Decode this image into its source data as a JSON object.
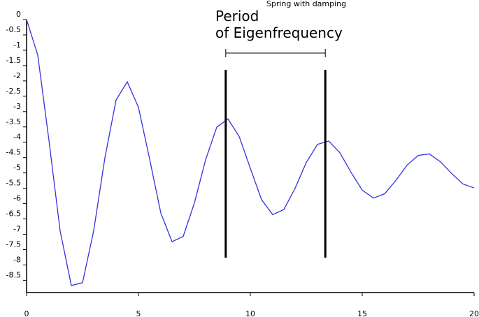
{
  "chart_data": {
    "type": "line",
    "title": "Spring with damping",
    "annotation": [
      "Period",
      "of Eigenfrequency"
    ],
    "markers_x": [
      8.9,
      13.35
    ],
    "x": [
      0,
      0.5,
      1,
      1.5,
      2,
      2.5,
      3,
      3.5,
      4,
      4.5,
      5,
      5.5,
      6,
      6.5,
      7,
      7.5,
      8,
      8.5,
      9,
      9.5,
      10,
      10.5,
      11,
      11.5,
      12,
      12.5,
      13,
      13.5,
      14,
      14.5,
      15,
      15.5,
      16,
      16.5,
      17,
      17.5,
      18,
      18.5,
      19,
      19.5,
      20
    ],
    "series": [
      {
        "color": "#3333dd",
        "values": [
          0,
          -1.16,
          -3.94,
          -6.89,
          -8.67,
          -8.58,
          -6.88,
          -4.51,
          -2.62,
          -2.03,
          -2.86,
          -4.55,
          -6.31,
          -7.24,
          -7.07,
          -5.98,
          -4.57,
          -3.51,
          -3.24,
          -3.81,
          -4.85,
          -5.87,
          -6.36,
          -6.19,
          -5.5,
          -4.66,
          -4.07,
          -3.96,
          -4.34,
          -4.98,
          -5.56,
          -5.82,
          -5.68,
          -5.25,
          -4.75,
          -4.43,
          -4.38,
          -4.64,
          -5.02,
          -5.36,
          -5.49
        ]
      }
    ],
    "xlim": [
      0,
      20
    ],
    "xticks": [
      0,
      5,
      10,
      15,
      20
    ],
    "ylim": [
      -8.9,
      0
    ],
    "yticks": [
      0,
      -0.5,
      -1,
      -1.5,
      -2,
      -2.5,
      -3,
      -3.5,
      -4,
      -4.5,
      -5,
      -5.5,
      -6,
      -6.5,
      -7,
      -7.5,
      -8,
      -8.5
    ]
  }
}
